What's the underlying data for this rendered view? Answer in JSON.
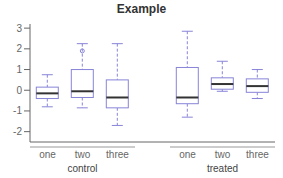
{
  "chart_data": {
    "type": "box",
    "title": "Example",
    "groups": [
      "control",
      "treated"
    ],
    "categories": [
      "one",
      "two",
      "three",
      "one",
      "two",
      "three"
    ],
    "median": [
      -0.15,
      -0.05,
      -0.35,
      -0.35,
      0.3,
      0.2
    ],
    "q1": [
      -0.4,
      -0.35,
      -0.85,
      -0.65,
      0.05,
      -0.1
    ],
    "q3": [
      0.15,
      1.0,
      0.5,
      1.1,
      0.6,
      0.55
    ],
    "whisker_low": [
      -0.8,
      -0.85,
      -1.7,
      -1.3,
      -0.05,
      -0.4
    ],
    "whisker_high": [
      0.75,
      2.25,
      2.25,
      2.85,
      1.4,
      1.0
    ],
    "fliers": [
      [],
      [
        1.9
      ],
      [],
      [],
      [],
      []
    ],
    "ylim": [
      -2.5,
      3.2
    ],
    "yticks": [
      -2,
      -1,
      0,
      1,
      2,
      3
    ],
    "grid": false
  }
}
